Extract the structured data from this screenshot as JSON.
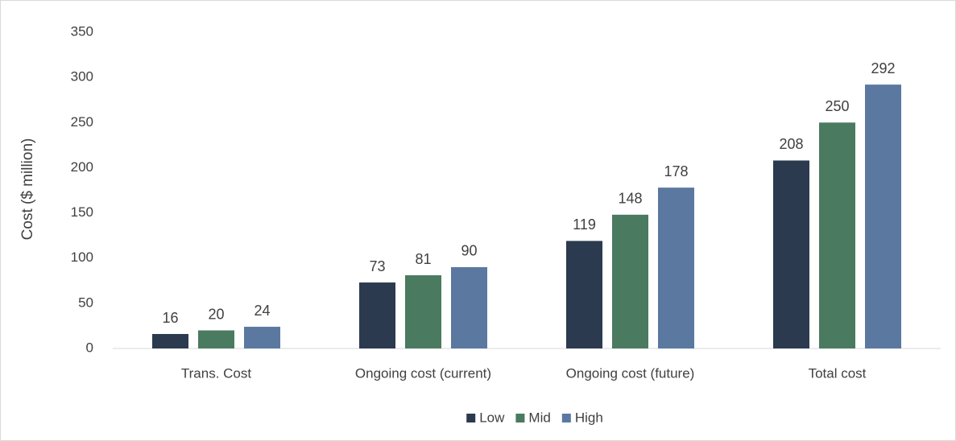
{
  "chart_data": {
    "type": "bar",
    "y_label": "Cost ($ million)",
    "categories": [
      "Trans. Cost",
      "Ongoing cost (current)",
      "Ongoing cost (future)",
      "Total cost"
    ],
    "series": [
      {
        "name": "Low",
        "color": "#2b3a4e",
        "values": [
          16,
          73,
          119,
          208
        ]
      },
      {
        "name": "Mid",
        "color": "#4a7a5f",
        "values": [
          20,
          81,
          148,
          250
        ]
      },
      {
        "name": "High",
        "color": "#5b78a0",
        "values": [
          24,
          90,
          178,
          292
        ]
      }
    ],
    "ylim": [
      0,
      350
    ],
    "yticks": [
      0,
      50,
      100,
      150,
      200,
      250,
      300,
      350
    ],
    "grid": false,
    "legend": "bottom",
    "data_labels": true
  }
}
